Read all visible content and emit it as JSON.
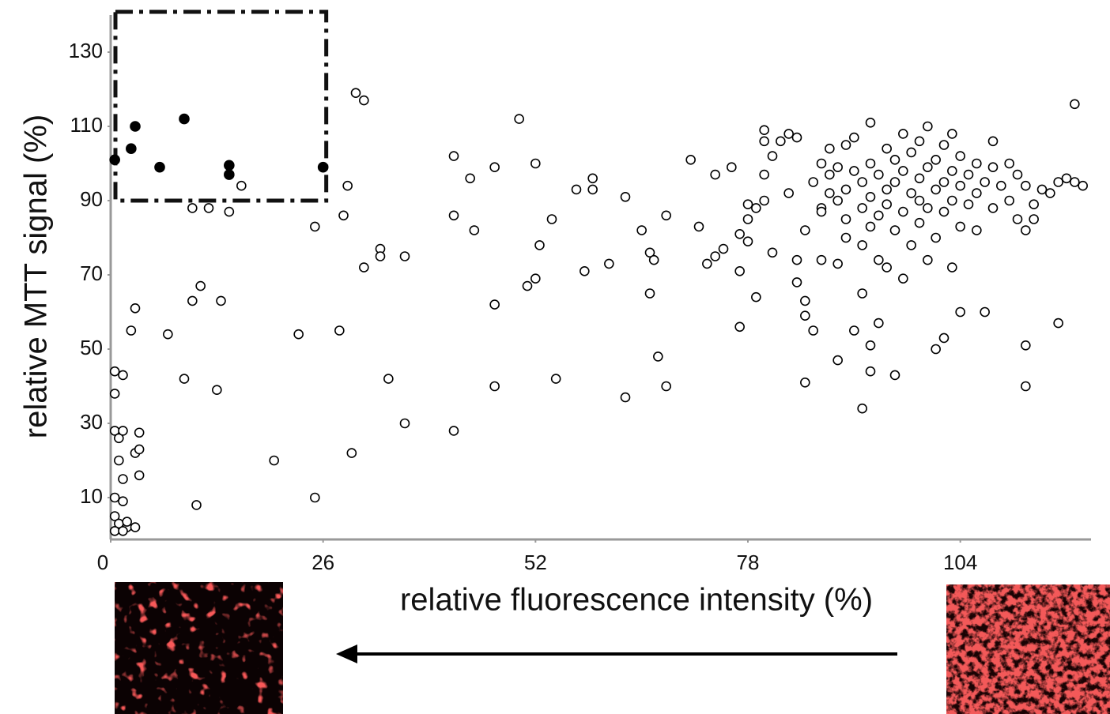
{
  "chart_data": {
    "type": "scatter",
    "xlabel": "relative fluorescence intensity (%)",
    "ylabel": "relative MTT signal (%)",
    "xlim": [
      0,
      120
    ],
    "ylim": [
      0,
      140
    ],
    "xticks": [
      0,
      26,
      52,
      78,
      104
    ],
    "yticks": [
      10,
      30,
      50,
      70,
      90,
      110,
      130
    ],
    "highlight_box": {
      "xlim": [
        0,
        26
      ],
      "ylim": [
        90,
        140
      ]
    },
    "series": [
      {
        "marker": "open",
        "color": "#000000",
        "x": [
          0.5,
          0.5,
          0.5,
          1,
          1,
          1.5,
          0.5,
          1.5,
          0.5,
          1,
          2,
          0.5,
          1.5,
          3,
          2,
          1.5,
          1.5,
          3,
          3.5,
          3.5,
          3.5,
          2.5,
          3,
          7,
          9,
          10,
          11,
          13,
          13.5,
          10.5,
          10,
          12,
          14.5,
          20,
          23,
          25,
          25,
          28,
          29,
          28.5,
          30,
          31,
          31,
          29.5,
          33,
          33,
          34,
          36,
          36,
          42,
          42,
          44,
          44.5,
          42,
          47,
          47,
          47,
          50,
          51,
          52,
          52.5,
          52,
          54,
          54.5,
          57,
          58,
          59,
          59,
          61,
          63,
          63,
          65,
          66,
          66.5,
          66,
          67,
          68,
          68,
          72,
          71,
          74,
          73,
          74,
          75,
          76,
          77,
          77,
          77,
          78,
          78,
          78,
          79,
          79,
          80,
          80,
          80,
          80,
          81,
          81,
          82,
          83,
          83,
          84,
          84,
          84,
          85,
          85,
          85,
          86,
          85,
          86,
          87,
          87,
          87,
          87,
          88,
          88,
          88,
          89,
          89,
          89,
          89,
          90,
          90,
          90,
          90,
          91,
          91,
          91,
          92,
          92,
          92,
          92,
          92,
          93,
          93,
          93,
          93,
          93,
          93,
          94,
          94,
          94,
          94,
          95,
          95,
          95,
          95,
          96,
          96,
          96,
          96,
          97,
          97,
          97,
          97,
          98,
          98,
          98,
          99,
          99,
          99,
          99,
          100,
          100,
          100,
          100,
          101,
          101,
          101,
          101,
          102,
          102,
          102,
          102,
          103,
          103,
          103,
          103,
          104,
          104,
          104,
          104,
          105,
          105,
          106,
          106,
          106,
          107,
          107,
          108,
          108,
          108,
          109,
          110,
          110,
          111,
          111,
          112,
          112,
          112,
          112,
          113,
          113,
          114,
          115,
          116,
          116,
          117,
          118,
          118,
          119,
          16
        ],
        "values": [
          44,
          38,
          28,
          26,
          20,
          28,
          10,
          9,
          5,
          3,
          2,
          1,
          1,
          2,
          3.5,
          43,
          15,
          22,
          23,
          27.5,
          16,
          55,
          61,
          54,
          42,
          63,
          67,
          39,
          63,
          8,
          88,
          88,
          87,
          20,
          54,
          83,
          10,
          55,
          94,
          86,
          119,
          117,
          72,
          22,
          77,
          75,
          42,
          75,
          30,
          102,
          86,
          96,
          82,
          28,
          99,
          62,
          40,
          112,
          67,
          100,
          78,
          69,
          85,
          42,
          93,
          71,
          96,
          93,
          73,
          91,
          37,
          82,
          76,
          74,
          65,
          48,
          86,
          40,
          83,
          101,
          97,
          73,
          75,
          77,
          99,
          81,
          71,
          56,
          79,
          85,
          89,
          88,
          64,
          106,
          109,
          97,
          90,
          102,
          76,
          106,
          108,
          92,
          107,
          68,
          74,
          59,
          63,
          41,
          55,
          82,
          95,
          100,
          88,
          74,
          87,
          104,
          92,
          97,
          99,
          90,
          73,
          47,
          105,
          93,
          85,
          80,
          107,
          98,
          55,
          95,
          88,
          78,
          65,
          34,
          111,
          100,
          91,
          83,
          51,
          44,
          97,
          86,
          74,
          57,
          104,
          93,
          89,
          72,
          101,
          95,
          82,
          43,
          108,
          98,
          87,
          69,
          103,
          92,
          78,
          106,
          96,
          90,
          84,
          110,
          99,
          88,
          74,
          101,
          93,
          80,
          50,
          105,
          95,
          87,
          53,
          108,
          98,
          90,
          72,
          102,
          94,
          83,
          60,
          97,
          89,
          100,
          92,
          82,
          95,
          60,
          106,
          99,
          88,
          94,
          100,
          90,
          97,
          85,
          94,
          82,
          51,
          40,
          89,
          85,
          93,
          92,
          57,
          95,
          96,
          95,
          116,
          94,
          94
        ]
      },
      {
        "marker": "filled",
        "color": "#000000",
        "x": [
          0.5,
          2.5,
          3,
          6,
          9,
          14.5,
          14.5,
          26
        ],
        "values": [
          101,
          104,
          110,
          99,
          112,
          97,
          99.5,
          99
        ]
      }
    ]
  }
}
